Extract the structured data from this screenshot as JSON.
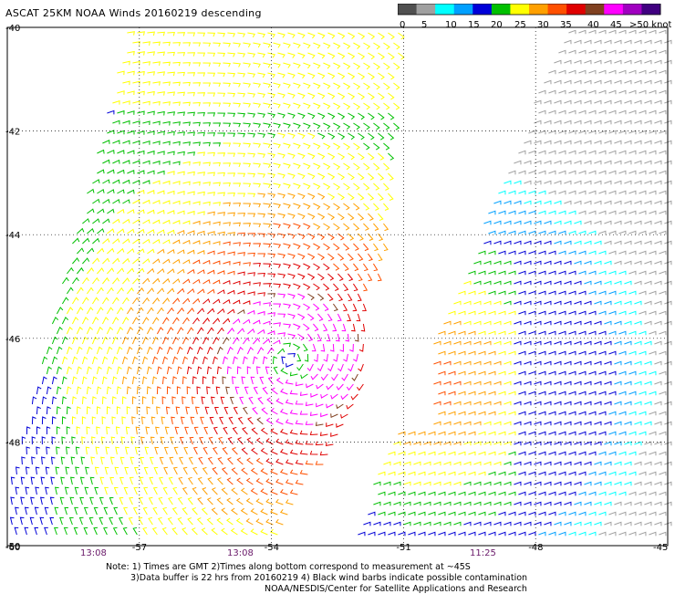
{
  "header": {
    "title": "ASCAT 25KM NOAA Winds 20160219 descending"
  },
  "legend": {
    "ticks": [
      "0",
      "5",
      "10",
      "15",
      "20",
      "25",
      "30",
      "35",
      "40",
      "45",
      ">50 knots"
    ],
    "colors": [
      "#505050",
      "#a0a0a0",
      "#00ffff",
      "#00a0ff",
      "#0000d8",
      "#00c000",
      "#ffff00",
      "#ffa000",
      "#ff5000",
      "#e00000",
      "#804020",
      "#ff00ff",
      "#a000c0",
      "#400080"
    ]
  },
  "map": {
    "lat_labels": [
      "-40",
      "-42",
      "-44",
      "-46",
      "-48",
      "-50"
    ],
    "lon_labels": [
      "-60",
      "-57",
      "-54",
      "-51",
      "-48",
      "-45"
    ],
    "time_labels": [
      "13:08",
      "13:08",
      "11:25"
    ],
    "lat_range": [
      -50,
      -40
    ],
    "lon_range": [
      -60,
      -45
    ],
    "grid": "dotted"
  },
  "notes": {
    "line1": "Note: 1) Times are GMT 2)Times along bottom correspond to measurement at ~45S",
    "line2": "3)Data buffer is 22 hrs from 20160219 4) Black wind barbs indicate possible contamination",
    "line3": "NOAA/NESDIS/Center for Satellite Applications and Research"
  }
}
